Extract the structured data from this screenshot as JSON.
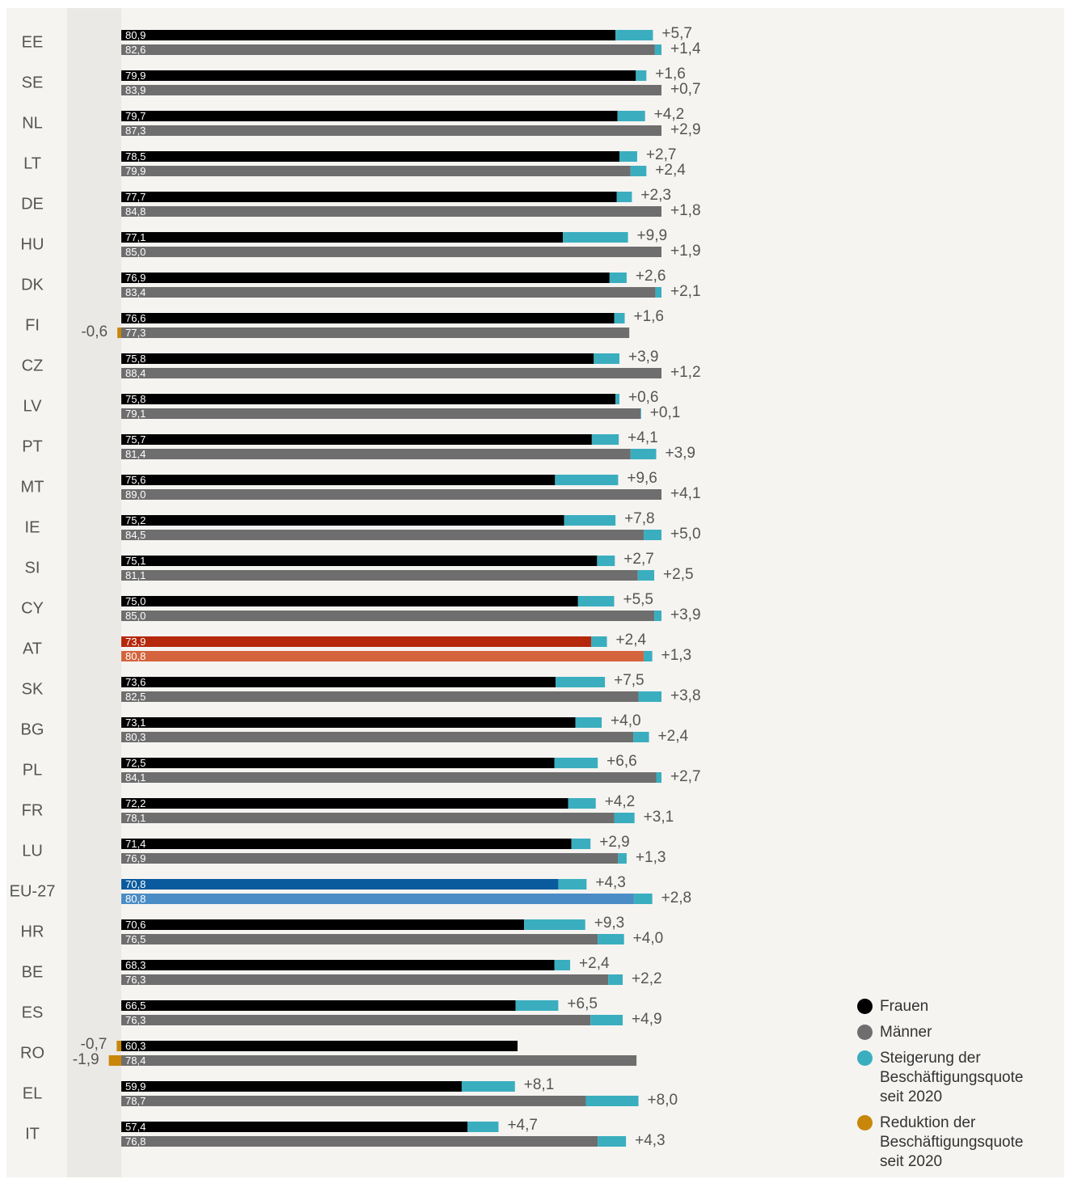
{
  "chart_data": {
    "type": "bar",
    "categories": [
      "EE",
      "SE",
      "NL",
      "LT",
      "DE",
      "HU",
      "DK",
      "FI",
      "CZ",
      "LV",
      "PT",
      "MT",
      "IE",
      "SI",
      "CY",
      "AT",
      "SK",
      "BG",
      "PL",
      "FR",
      "LU",
      "EU-27",
      "HR",
      "BE",
      "ES",
      "RO",
      "EL",
      "IT"
    ],
    "series": [
      {
        "name": "Frauen",
        "color": "#000000",
        "values": [
          80.9,
          79.9,
          79.7,
          78.5,
          77.7,
          77.1,
          76.9,
          76.6,
          75.8,
          75.8,
          75.7,
          75.6,
          75.2,
          75.1,
          75.0,
          73.9,
          73.6,
          73.1,
          72.5,
          72.2,
          71.4,
          70.8,
          70.6,
          68.3,
          66.5,
          60.3,
          59.9,
          57.4
        ],
        "value_labels": [
          "80,9",
          "79,9",
          "79,7",
          "78,5",
          "77,7",
          "77,1",
          "76,9",
          "76,6",
          "75,8",
          "75,8",
          "75,7",
          "75,6",
          "75,2",
          "75,1",
          "75,0",
          "73,9",
          "73,6",
          "73,1",
          "72,5",
          "72,2",
          "71,4",
          "70,8",
          "70,6",
          "68,3",
          "66,5",
          "60,3",
          "59,9",
          "57,4"
        ],
        "changes": [
          5.7,
          1.6,
          4.2,
          2.7,
          2.3,
          9.9,
          2.6,
          1.6,
          3.9,
          0.6,
          4.1,
          9.6,
          7.8,
          2.7,
          5.5,
          2.4,
          7.5,
          4.0,
          6.6,
          4.2,
          2.9,
          4.3,
          9.3,
          2.4,
          6.5,
          -0.7,
          8.1,
          4.7
        ],
        "change_labels": [
          "+5,7",
          "+1,6",
          "+4,2",
          "+2,7",
          "+2,3",
          "+9,9",
          "+2,6",
          "+1,6",
          "+3,9",
          "+0,6",
          "+4,1",
          "+9,6",
          "+7,8",
          "+2,7",
          "+5,5",
          "+2,4",
          "+7,5",
          "+4,0",
          "+6,6",
          "+4,2",
          "+2,9",
          "+4,3",
          "+9,3",
          "+2,4",
          "+6,5",
          "-0,7",
          "+8,1",
          "+4,7"
        ]
      },
      {
        "name": "Männer",
        "color": "#6e6e6e",
        "values": [
          82.6,
          83.9,
          87.3,
          79.9,
          84.8,
          85.0,
          83.4,
          77.3,
          88.4,
          79.1,
          81.4,
          89.0,
          84.5,
          81.1,
          85.0,
          80.8,
          82.5,
          80.3,
          84.1,
          78.1,
          76.9,
          80.8,
          76.5,
          76.3,
          76.3,
          78.4,
          78.7,
          76.8
        ],
        "value_labels": [
          "82,6",
          "83,9",
          "87,3",
          "79,9",
          "84,8",
          "85,0",
          "83,4",
          "77,3",
          "88,4",
          "79,1",
          "81,4",
          "89,0",
          "84,5",
          "81,1",
          "85,0",
          "80,8",
          "82,5",
          "80,3",
          "84,1",
          "78,1",
          "76,9",
          "80,8",
          "76,5",
          "76,3",
          "76,3",
          "78,4",
          "78,7",
          "76,8"
        ],
        "changes": [
          1.4,
          0.7,
          2.9,
          2.4,
          1.8,
          1.9,
          2.1,
          -0.6,
          1.2,
          0.1,
          3.9,
          4.1,
          5.0,
          2.5,
          3.9,
          1.3,
          3.8,
          2.4,
          2.7,
          3.1,
          1.3,
          2.8,
          4.0,
          2.2,
          4.9,
          -1.9,
          8.0,
          4.3
        ],
        "change_labels": [
          "+1,4",
          "+0,7",
          "+2,9",
          "+2,4",
          "+1,8",
          "+1,9",
          "+2,1",
          "-0,6",
          "+1,2",
          "+0,1",
          "+3,9",
          "+4,1",
          "+5,0",
          "+2,5",
          "+3,9",
          "+1,3",
          "+3,8",
          "+2,4",
          "+2,7",
          "+3,1",
          "+1,3",
          "+2,8",
          "+4,0",
          "+2,2",
          "+4,9",
          "-1,9",
          "+8,0",
          "+4,3"
        ]
      }
    ],
    "change_legend": [
      {
        "name": "Steigerung der Beschäftigungsquote seit 2020",
        "color": "#3aaebf"
      },
      {
        "name": "Reduktion der Beschäftigungsquote seit 2020",
        "color": "#c8860a"
      }
    ],
    "highlight_colors": {
      "AT": [
        "#b5280c",
        "#d4643d"
      ],
      "EU-27": [
        "#0a5a9e",
        "#4a8cc6"
      ]
    },
    "xlim": [
      0,
      82.2
    ]
  }
}
